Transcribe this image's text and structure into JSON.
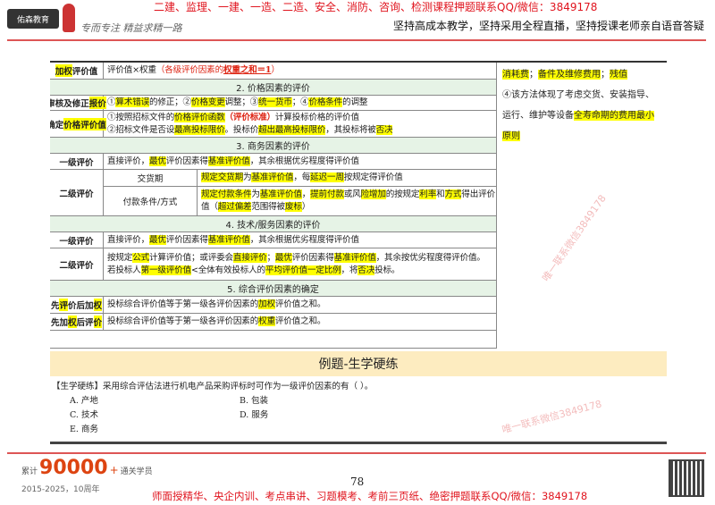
{
  "header": {
    "logo": "佑森教育",
    "signature": "专而专注 精益求精一路",
    "ad_top": "二建、监理、一建、一造、二造、安全、消防、咨询、检测课程押题联系QQ/微信：3849178",
    "slogan": "坚持高成本教学，坚持采用全程直播，坚持授课老师亲自语音答疑"
  },
  "table": {
    "r_weight": {
      "label": [
        {
          "t": "加权",
          "c": "hl"
        },
        {
          "t": "评价值"
        }
      ],
      "value": [
        [
          {
            "t": "评价值×权重"
          },
          {
            "t": "（各级评价因素的",
            "c": "red"
          },
          {
            "t": "权重之和＝1",
            "c": "redu"
          },
          {
            "t": "）",
            "c": "red"
          }
        ]
      ]
    },
    "sec2": "2. 价格因素的评价",
    "r_audit": {
      "label": [
        {
          "t": "审核及修正"
        },
        {
          "t": "报价",
          "c": "hl"
        }
      ],
      "value": [
        [
          {
            "t": "①"
          },
          {
            "t": "算术错误",
            "c": "hl"
          },
          {
            "t": "的修正；②"
          },
          {
            "t": "价格变更",
            "c": "hl"
          },
          {
            "t": "调整；③"
          },
          {
            "t": "统一货币",
            "c": "hl"
          },
          {
            "t": "；④"
          },
          {
            "t": "价格条件",
            "c": "hl"
          },
          {
            "t": "的调整"
          }
        ]
      ]
    },
    "r_price": {
      "label": [
        {
          "t": "确定"
        },
        {
          "t": "价格评价值",
          "c": "hl"
        }
      ],
      "value": [
        [
          {
            "t": "①按照招标文件的"
          },
          {
            "t": "价格评价函数",
            "c": "hl"
          },
          {
            "t": "（评价标准）",
            "c": "red bold"
          },
          {
            "t": "计算投标价格的评价值"
          }
        ],
        [
          {
            "t": "②招标文件是否设"
          },
          {
            "t": "最高投标限价",
            "c": "hl"
          },
          {
            "t": "。投标价"
          },
          {
            "t": "超出最高投标限价",
            "c": "hl"
          },
          {
            "t": "，其投标将被"
          },
          {
            "t": "否决",
            "c": "hl"
          }
        ]
      ]
    },
    "sec3": "3. 商务因素的评价",
    "r_b1": {
      "label": [
        {
          "t": "一级评价"
        }
      ],
      "value": [
        [
          {
            "t": "直接评价，"
          },
          {
            "t": "最优",
            "c": "hl"
          },
          {
            "t": "评价因素得"
          },
          {
            "t": "基准评价值",
            "c": "hl"
          },
          {
            "t": "，其余根据优劣程度得评价值"
          }
        ]
      ]
    },
    "r_b2": {
      "label": [
        {
          "t": "二级评价"
        }
      ],
      "subs": [
        {
          "sub": "交货期",
          "value": [
            [
              {
                "t": "规定交货期",
                "c": "hl"
              },
              {
                "t": "为"
              },
              {
                "t": "基准评价值",
                "c": "hl"
              },
              {
                "t": "，每"
              },
              {
                "t": "延迟一周",
                "c": "hl"
              },
              {
                "t": "按规定得评价值"
              }
            ]
          ]
        },
        {
          "sub": "付款条件/方式",
          "value": [
            [
              {
                "t": "规定付款条件",
                "c": "hl"
              },
              {
                "t": "为"
              },
              {
                "t": "基准评价值",
                "c": "hl"
              },
              {
                "t": "，"
              },
              {
                "t": "提前付款",
                "c": "hl"
              },
              {
                "t": "或风"
              },
              {
                "t": "险增加",
                "c": "hl"
              },
              {
                "t": "的按规定"
              },
              {
                "t": "利率",
                "c": "hl"
              },
              {
                "t": "和"
              },
              {
                "t": "方式",
                "c": "hl"
              },
              {
                "t": "得出评价"
              }
            ],
            [
              {
                "t": "值（"
              },
              {
                "t": "超过偏差",
                "c": "hl"
              },
              {
                "t": "范围得被"
              },
              {
                "t": "废标",
                "c": "hl"
              },
              {
                "t": "）"
              }
            ]
          ]
        }
      ]
    },
    "sec4": "4. 技术/服务因素的评价",
    "r_t1": {
      "label": [
        {
          "t": "一级评价"
        }
      ],
      "value": [
        [
          {
            "t": "直接评价，"
          },
          {
            "t": "最优",
            "c": "hl"
          },
          {
            "t": "评价因素得"
          },
          {
            "t": "基准评价值",
            "c": "hl"
          },
          {
            "t": "，其余根据优劣程度得评价值"
          }
        ]
      ]
    },
    "r_t2": {
      "label": [
        {
          "t": "二级评价"
        }
      ],
      "value": [
        [
          {
            "t": "按规定"
          },
          {
            "t": "公式",
            "c": "hl"
          },
          {
            "t": "计算评价值；或评委会"
          },
          {
            "t": "直接评价",
            "c": "hl"
          },
          {
            "t": "；"
          },
          {
            "t": "最优",
            "c": "hl"
          },
          {
            "t": "评价因素得"
          },
          {
            "t": "基准评价值",
            "c": "hl"
          },
          {
            "t": "，其余按优劣程度得评价值。"
          }
        ],
        [
          {
            "t": "若投标人"
          },
          {
            "t": "第一级评价值",
            "c": "hl"
          },
          {
            "t": "<全体有效投标人的"
          },
          {
            "t": "平均评价值一定比例",
            "c": "hl"
          },
          {
            "t": "，将"
          },
          {
            "t": "否决",
            "c": "hl"
          },
          {
            "t": "投标。"
          }
        ]
      ]
    },
    "sec5": "5. 综合评价因素的确定",
    "r_c1": {
      "label": [
        {
          "t": "先"
        },
        {
          "t": "评",
          "c": "hl"
        },
        {
          "t": "价后加"
        },
        {
          "t": "权",
          "c": "hl"
        }
      ],
      "value": [
        [
          {
            "t": "投标综合评价值等于第一级各评价因素的"
          },
          {
            "t": "加权",
            "c": "hl"
          },
          {
            "t": "评价值之和。"
          }
        ]
      ]
    },
    "r_c2": {
      "label": [
        {
          "t": "先加"
        },
        {
          "t": "权",
          "c": "hl"
        },
        {
          "t": "后评"
        },
        {
          "t": "价",
          "c": "hl"
        }
      ],
      "value": [
        [
          {
            "t": "投标综合评价值等于第一级各评价因素的"
          },
          {
            "t": "权重",
            "c": "hl"
          },
          {
            "t": "评价值之和。"
          }
        ]
      ]
    }
  },
  "right": [
    [
      {
        "t": "消耗费",
        "c": "hl"
      },
      {
        "t": "；"
      },
      {
        "t": "备件及维修费用",
        "c": "hl"
      },
      {
        "t": "；"
      },
      {
        "t": "残值",
        "c": "hl"
      }
    ],
    [
      {
        "t": "④该方法体现了考虑交货、安装指导、"
      }
    ],
    [
      {
        "t": "运行、维护等设备"
      },
      {
        "t": "全寿命期的费用最小",
        "c": "hl"
      }
    ],
    [
      {
        "t": "原则",
        "c": "hl"
      }
    ]
  ],
  "example": {
    "title": "例题-生学硬练",
    "question": "【生学硬练】采用综合评估法进行机电产品采购评标时可作为一级评价因素的有（    ）。",
    "options": [
      "A. 产地",
      "B. 包装",
      "C. 技术",
      "D. 服务",
      "E. 商务"
    ]
  },
  "watermark": [
    "唯一联系微信3849178",
    "唯一联系微信3849178"
  ],
  "footer": {
    "count_prefix": "累计",
    "count": "90000",
    "count_plus": "+",
    "count_suffix": "通关学员",
    "years": "2015-2025，10周年",
    "page": "78",
    "ad_bottom": "师面授精华、央企内训、考点串讲、习题模考、考前三页纸、绝密押题联系QQ/微信：3849178"
  }
}
